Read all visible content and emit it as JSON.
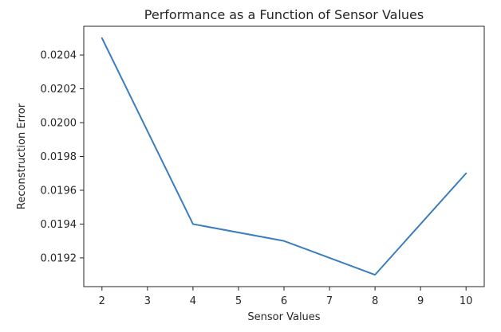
{
  "chart_data": {
    "type": "line",
    "title": "Performance as a Function of Sensor Values",
    "xlabel": "Sensor Values",
    "ylabel": "Reconstruction Error",
    "x": [
      2,
      4,
      6,
      8,
      10
    ],
    "series": [
      {
        "values": [
          0.0205,
          0.0194,
          0.0193,
          0.0191,
          0.0197
        ],
        "color": "#3b7dbf"
      }
    ],
    "xlim": [
      1.6,
      10.4
    ],
    "ylim": [
      0.01903,
      0.02057
    ],
    "xticks": [
      2,
      3,
      4,
      5,
      6,
      7,
      8,
      9,
      10
    ],
    "xtick_labels": [
      "2",
      "3",
      "4",
      "5",
      "6",
      "7",
      "8",
      "9",
      "10"
    ],
    "yticks": [
      0.0192,
      0.0194,
      0.0196,
      0.0198,
      0.02,
      0.0202,
      0.0204
    ],
    "ytick_labels": [
      "0.0192",
      "0.0194",
      "0.0196",
      "0.0198",
      "0.0200",
      "0.0202",
      "0.0204"
    ],
    "grid": false,
    "legend": false
  }
}
